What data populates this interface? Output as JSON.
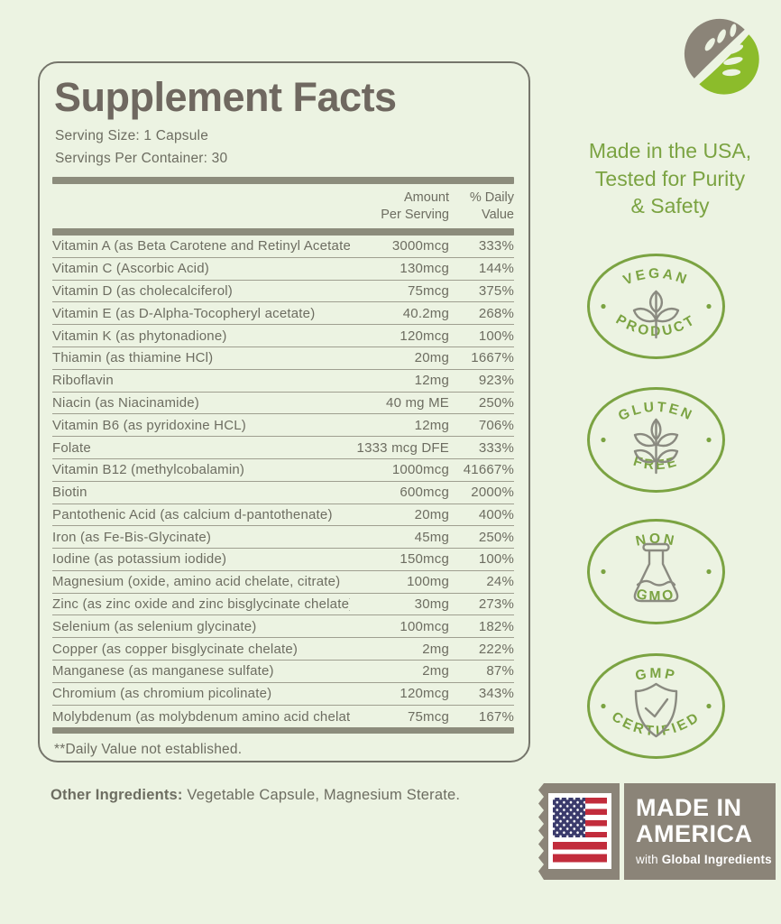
{
  "colors": {
    "background": "#ecf3e2",
    "accent_green": "#7ba342",
    "logo_green": "#8cbc2b",
    "stamp_taupe": "#8b8478",
    "text_gray": "#6d6d61",
    "flag_red": "#c22c3c",
    "flag_blue": "#3a3a6b"
  },
  "label_panel": {
    "title": "Supplement Facts",
    "serving_size": "Serving Size: 1 Capsule",
    "servings_per_container": "Servings Per Container: 30",
    "columns": {
      "amount_line1": "Amount",
      "amount_line2": "Per Serving",
      "dv_line1": "% Daily",
      "dv_line2": "Value"
    },
    "rows": [
      {
        "name": "Vitamin A (as Beta Carotene and Retinyl Acetate)",
        "amount": "3000mcg",
        "dv": "333%"
      },
      {
        "name": "Vitamin C (Ascorbic Acid)",
        "amount": "130mcg",
        "dv": "144%"
      },
      {
        "name": "Vitamin D (as cholecalciferol)",
        "amount": "75mcg",
        "dv": "375%"
      },
      {
        "name": "Vitamin E (as D-Alpha-Tocopheryl acetate)",
        "amount": "40.2mg",
        "dv": "268%"
      },
      {
        "name": "Vitamin K (as phytonadione)",
        "amount": "120mcg",
        "dv": "100%"
      },
      {
        "name": "Thiamin (as thiamine HCl)",
        "amount": "20mg",
        "dv": "1667%"
      },
      {
        "name": "Riboflavin",
        "amount": "12mg",
        "dv": "923%"
      },
      {
        "name": "Niacin (as Niacinamide)",
        "amount": "40 mg ME",
        "dv": "250%"
      },
      {
        "name": "Vitamin B6 (as pyridoxine HCL)",
        "amount": "12mg",
        "dv": "706%"
      },
      {
        "name": "Folate",
        "amount": "1333 mcg DFE",
        "dv": "333%"
      },
      {
        "name": "Vitamin B12 (methylcobalamin)",
        "amount": "1000mcg",
        "dv": "41667%"
      },
      {
        "name": "Biotin",
        "amount": "600mcg",
        "dv": "2000%"
      },
      {
        "name": "Pantothenic Acid (as calcium d-pantothenate)",
        "amount": "20mg",
        "dv": "400%"
      },
      {
        "name": "Iron (as Fe-Bis-Glycinate)",
        "amount": "45mg",
        "dv": "250%"
      },
      {
        "name": "Iodine (as potassium iodide)",
        "amount": "150mcg",
        "dv": "100%"
      },
      {
        "name": "Magnesium (oxide, amino acid chelate, citrate)",
        "amount": "100mg",
        "dv": "24%"
      },
      {
        "name": "Zinc (as zinc oxide and zinc bisglycinate chelate)",
        "amount": "30mg",
        "dv": "273%"
      },
      {
        "name": "Selenium (as selenium glycinate)",
        "amount": "100mcg",
        "dv": "182%"
      },
      {
        "name": "Copper (as copper bisglycinate chelate)",
        "amount": "2mg",
        "dv": "222%"
      },
      {
        "name": "Manganese (as manganese sulfate)",
        "amount": "2mg",
        "dv": "87%"
      },
      {
        "name": "Chromium (as chromium picolinate)",
        "amount": "120mcg",
        "dv": "343%"
      },
      {
        "name": "Molybdenum (as molybdenum amino acid chelate)",
        "amount": "75mcg",
        "dv": "167%"
      }
    ],
    "footnote": "**Daily Value not established."
  },
  "other_ingredients": {
    "label": "Other Ingredients:",
    "rest": " Vegetable Capsule, Magnesium Sterate."
  },
  "sidebar": {
    "logo_icon": "leaf-logo",
    "tagline": {
      "line1": "Made in the USA,",
      "line2": "Tested for Purity",
      "line3": "& Safety"
    },
    "badges": [
      {
        "top": "VEGAN",
        "bottom": "PRODUCT",
        "icon": "plant-icon"
      },
      {
        "top": "GLUTEN",
        "bottom": "FREE",
        "icon": "wheat-icon"
      },
      {
        "top": "NON",
        "bottom": "GMO",
        "icon": "flask-icon"
      },
      {
        "top": "GMP",
        "bottom": "CERTIFIED",
        "icon": "shield-check-icon"
      }
    ],
    "stamp": {
      "line1": "MADE IN",
      "line2": "AMERICA",
      "line3_prefix": "with ",
      "line3_bold": "Global Ingredients"
    }
  }
}
